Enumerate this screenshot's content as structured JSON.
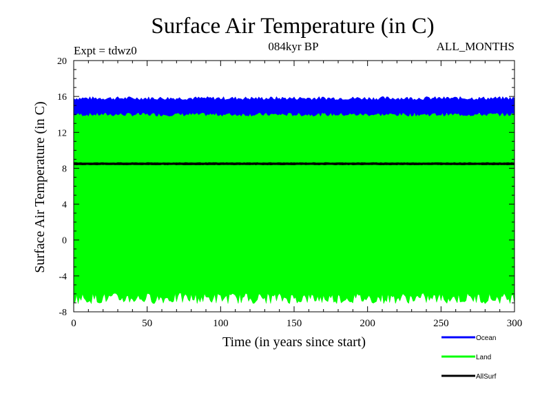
{
  "chart_data": {
    "type": "area",
    "title": "Surface Air Temperature (in C)",
    "subtitle_left": "Expt = tdwz0",
    "subtitle_center": "084kyr BP",
    "subtitle_right": "ALL_MONTHS",
    "xlabel": "Time (in years since start)",
    "ylabel": "Surface Air Temperature (in C)",
    "xlim": [
      0,
      300
    ],
    "ylim": [
      -8,
      20
    ],
    "x_ticks": [
      "0",
      "50",
      "100",
      "150",
      "200",
      "250",
      "300"
    ],
    "y_ticks": [
      "-8",
      "-4",
      "0",
      "4",
      "8",
      "12",
      "16",
      "20"
    ],
    "grid": false,
    "legend_position": "bottom-right",
    "series": [
      {
        "name": "Ocean",
        "color": "#0000ff",
        "low": 14.0,
        "high": 15.8
      },
      {
        "name": "Land",
        "color": "#00ff00",
        "low": -6.5,
        "high": 14.2
      },
      {
        "name": "AllSurf",
        "color": "#000000",
        "low": 8.4,
        "high": 8.6
      }
    ]
  }
}
